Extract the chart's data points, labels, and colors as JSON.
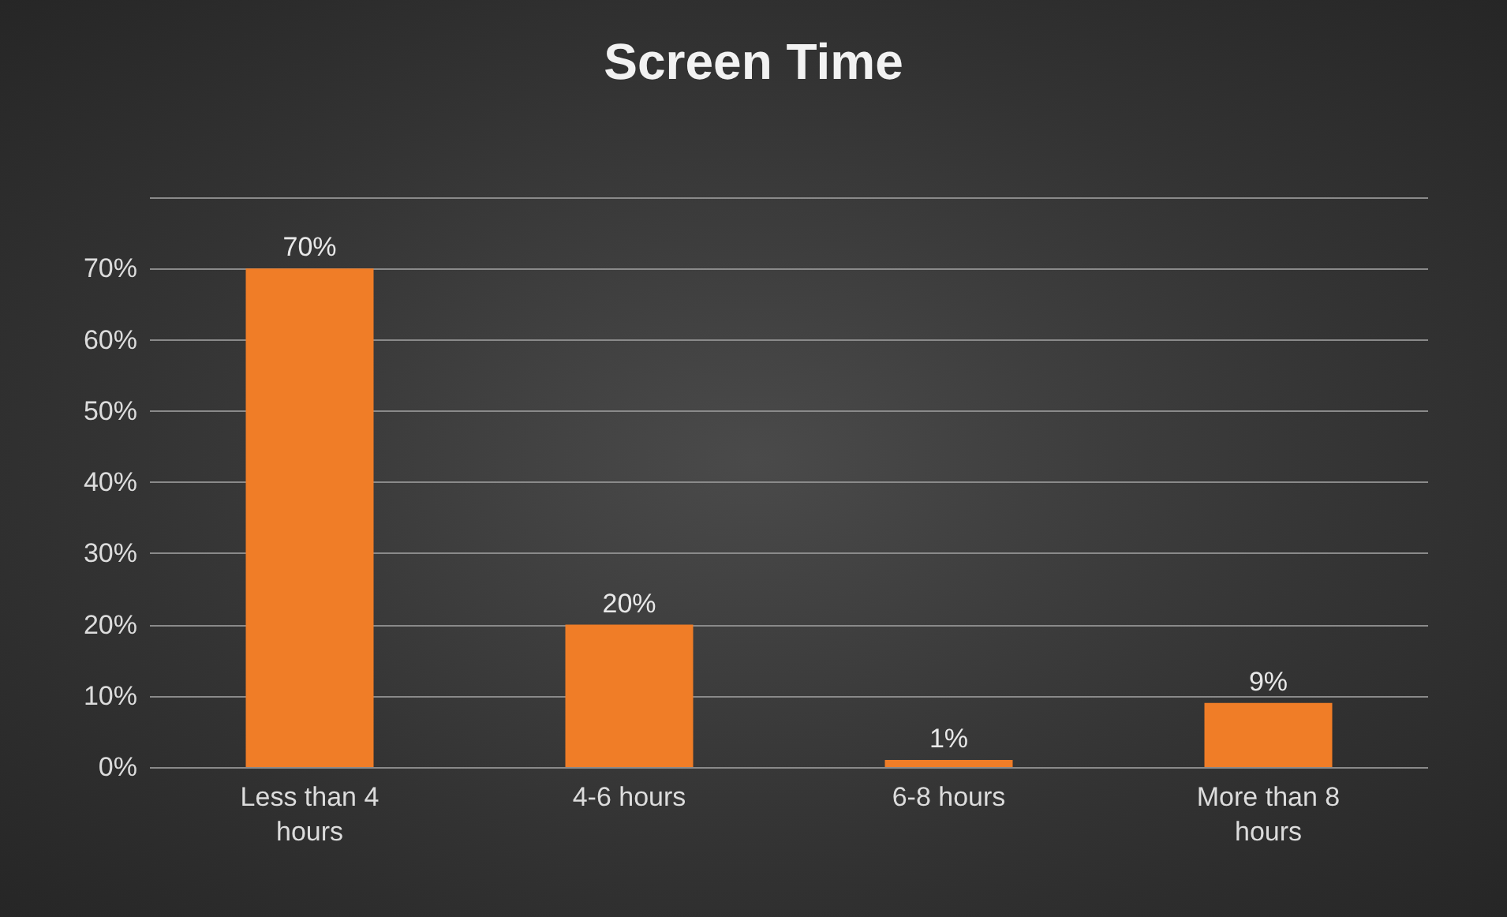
{
  "chart_data": {
    "type": "bar",
    "title": "Screen Time",
    "categories": [
      "Less than 4\nhours",
      "4-6 hours",
      "6-8 hours",
      "More than 8\nhours"
    ],
    "values": [
      70,
      20,
      1,
      9
    ],
    "value_labels": [
      "70%",
      "20%",
      "1%",
      "9%"
    ],
    "color": "#f07d27",
    "ylim": [
      0,
      80
    ],
    "yticks": [
      {
        "value": 0,
        "label": "0%"
      },
      {
        "value": 10,
        "label": "10%"
      },
      {
        "value": 20,
        "label": "20%"
      },
      {
        "value": 30,
        "label": "30%"
      },
      {
        "value": 40,
        "label": "40%"
      },
      {
        "value": 50,
        "label": "50%"
      },
      {
        "value": 60,
        "label": "60%"
      },
      {
        "value": 70,
        "label": "70%"
      },
      {
        "value": 80,
        "label": null
      }
    ],
    "grid": true
  }
}
